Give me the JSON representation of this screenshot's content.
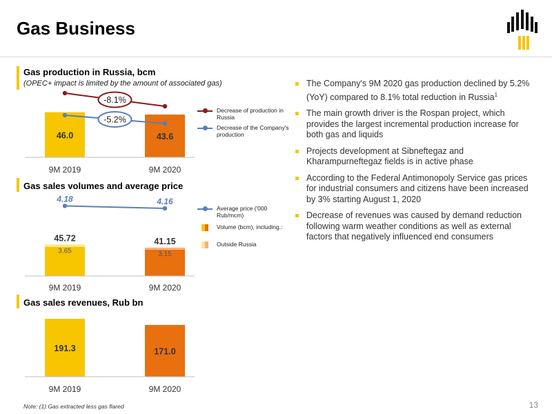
{
  "title": "Gas Business",
  "page_number": "13",
  "note": "Note: (1) Gas extracted less gas flared",
  "colors": {
    "yellow": "#f7c600",
    "orange": "#e8700f",
    "light_yellow": "#fbe98c",
    "light_orange": "#f4b27a",
    "dark_red": "#8b1a1a",
    "blue": "#5b7fbd"
  },
  "section1": {
    "title": "Gas production in Russia, bcm",
    "subtitle": "(OPEC+ impact is limited by the amount of associated gas)"
  },
  "section2": {
    "title": "Gas sales volumes and average price"
  },
  "section3": {
    "title": "Gas sales revenues, Rub bn"
  },
  "legend1": {
    "russia": "Decrease of production in Russia",
    "company": "Decrease of the Company's production"
  },
  "legend2": {
    "price": "Average price ('000 Rub/mcm)",
    "volume": "Volume (bcm), including.:",
    "outside": "Outside Russia"
  },
  "bullets": [
    "The Company's 9M 2020 gas production declined by 5.2% (YoY) compared to 8.1% total reduction in Russia",
    "The main growth driver is the Rospan project, which provides the largest incremental production increase for both gas and liquids",
    "Projects development at Sibneftegaz and Kharampurneftegaz fields is in active phase",
    "According to the Federal Antimonopoly Service gas prices for industrial consumers and citizens have been increased by 3% starting August 1, 2020",
    "Decrease of revenues was caused by demand reduction following warm weather conditions as well as external factors that negatively influenced end consumers"
  ],
  "bullet1_sup": "1",
  "chart_data": [
    {
      "type": "bar",
      "title": "Gas production in Russia, bcm",
      "categories": [
        "9M 2019",
        "9M 2020"
      ],
      "values": [
        46.0,
        43.6
      ],
      "value_labels": [
        "46.0",
        "43.6"
      ],
      "annotations": [
        {
          "series": "Decrease of production in Russia",
          "label": "-8.1%",
          "color": "#8b1a1a"
        },
        {
          "series": "Decrease of the Company's production",
          "label": "-5.2%",
          "color": "#5b7fbd"
        }
      ],
      "ylim": [
        0,
        76
      ]
    },
    {
      "type": "bar",
      "title": "Gas sales volumes and average price",
      "categories": [
        "9M 2019",
        "9M 2020"
      ],
      "series": [
        {
          "name": "Volume (bcm), including.:",
          "values": [
            45.72,
            41.15
          ],
          "labels": [
            "45.72",
            "41.15"
          ]
        },
        {
          "name": "Outside Russia",
          "values": [
            3.65,
            3.15
          ],
          "labels": [
            "3.65",
            "3.15"
          ]
        },
        {
          "name": "Average price ('000 Rub/mcm)",
          "values": [
            4.18,
            4.16
          ],
          "labels": [
            "4.18",
            "4.16"
          ],
          "kind": "line"
        }
      ],
      "ylim": [
        0,
        62
      ]
    },
    {
      "type": "bar",
      "title": "Gas sales revenues, Rub bn",
      "categories": [
        "9M 2019",
        "9M 2020"
      ],
      "values": [
        191.3,
        171.0
      ],
      "value_labels": [
        "191.3",
        "171.0"
      ],
      "ylim": [
        0,
        191.3
      ]
    }
  ]
}
